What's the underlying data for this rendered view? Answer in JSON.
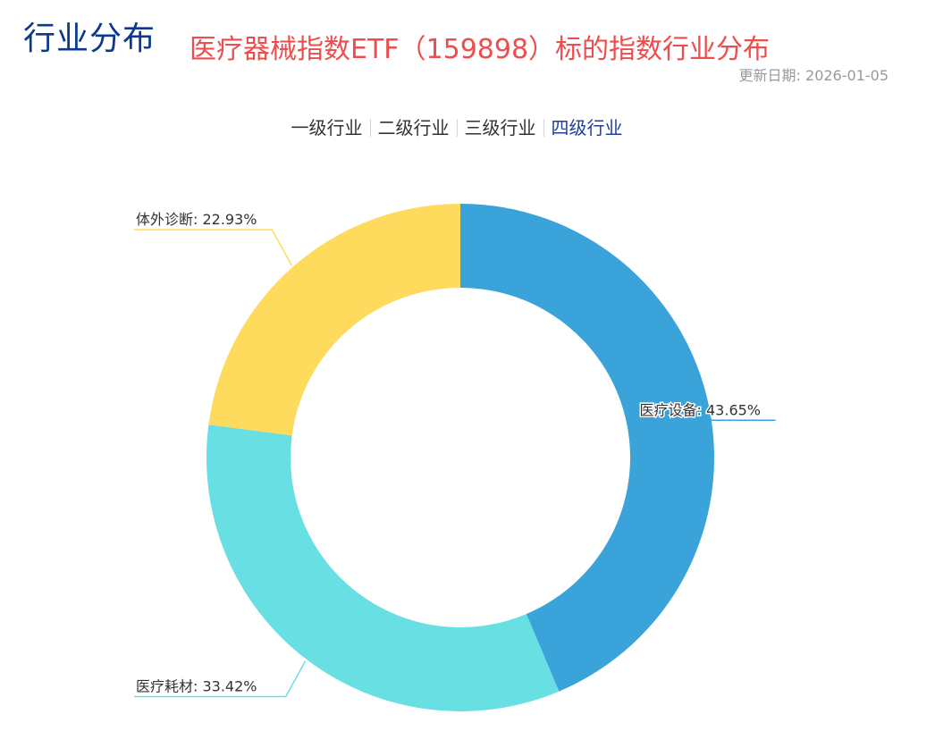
{
  "header": {
    "section_title": "行业分布",
    "chart_title": "医疗器械指数ETF（159898）标的指数行业分布",
    "update_date": "更新日期: 2026-01-05"
  },
  "tabs": [
    {
      "label": "一级行业",
      "active": false
    },
    {
      "label": "二级行业",
      "active": false
    },
    {
      "label": "三级行业",
      "active": false
    },
    {
      "label": "四级行业",
      "active": true
    }
  ],
  "chart_data": {
    "type": "pie",
    "variant": "donut",
    "start_position": "top, clockwise",
    "slices": [
      {
        "name": "医疗设备",
        "value": 43.65,
        "label": "医疗设备: 43.65%",
        "color": "#3aa3da"
      },
      {
        "name": "医疗耗材",
        "value": 33.42,
        "label": "医疗耗材: 33.42%",
        "color": "#67dfe3"
      },
      {
        "name": "体外诊断",
        "value": 22.93,
        "label": "体外诊断: 22.93%",
        "color": "#fedb5c"
      }
    ]
  }
}
